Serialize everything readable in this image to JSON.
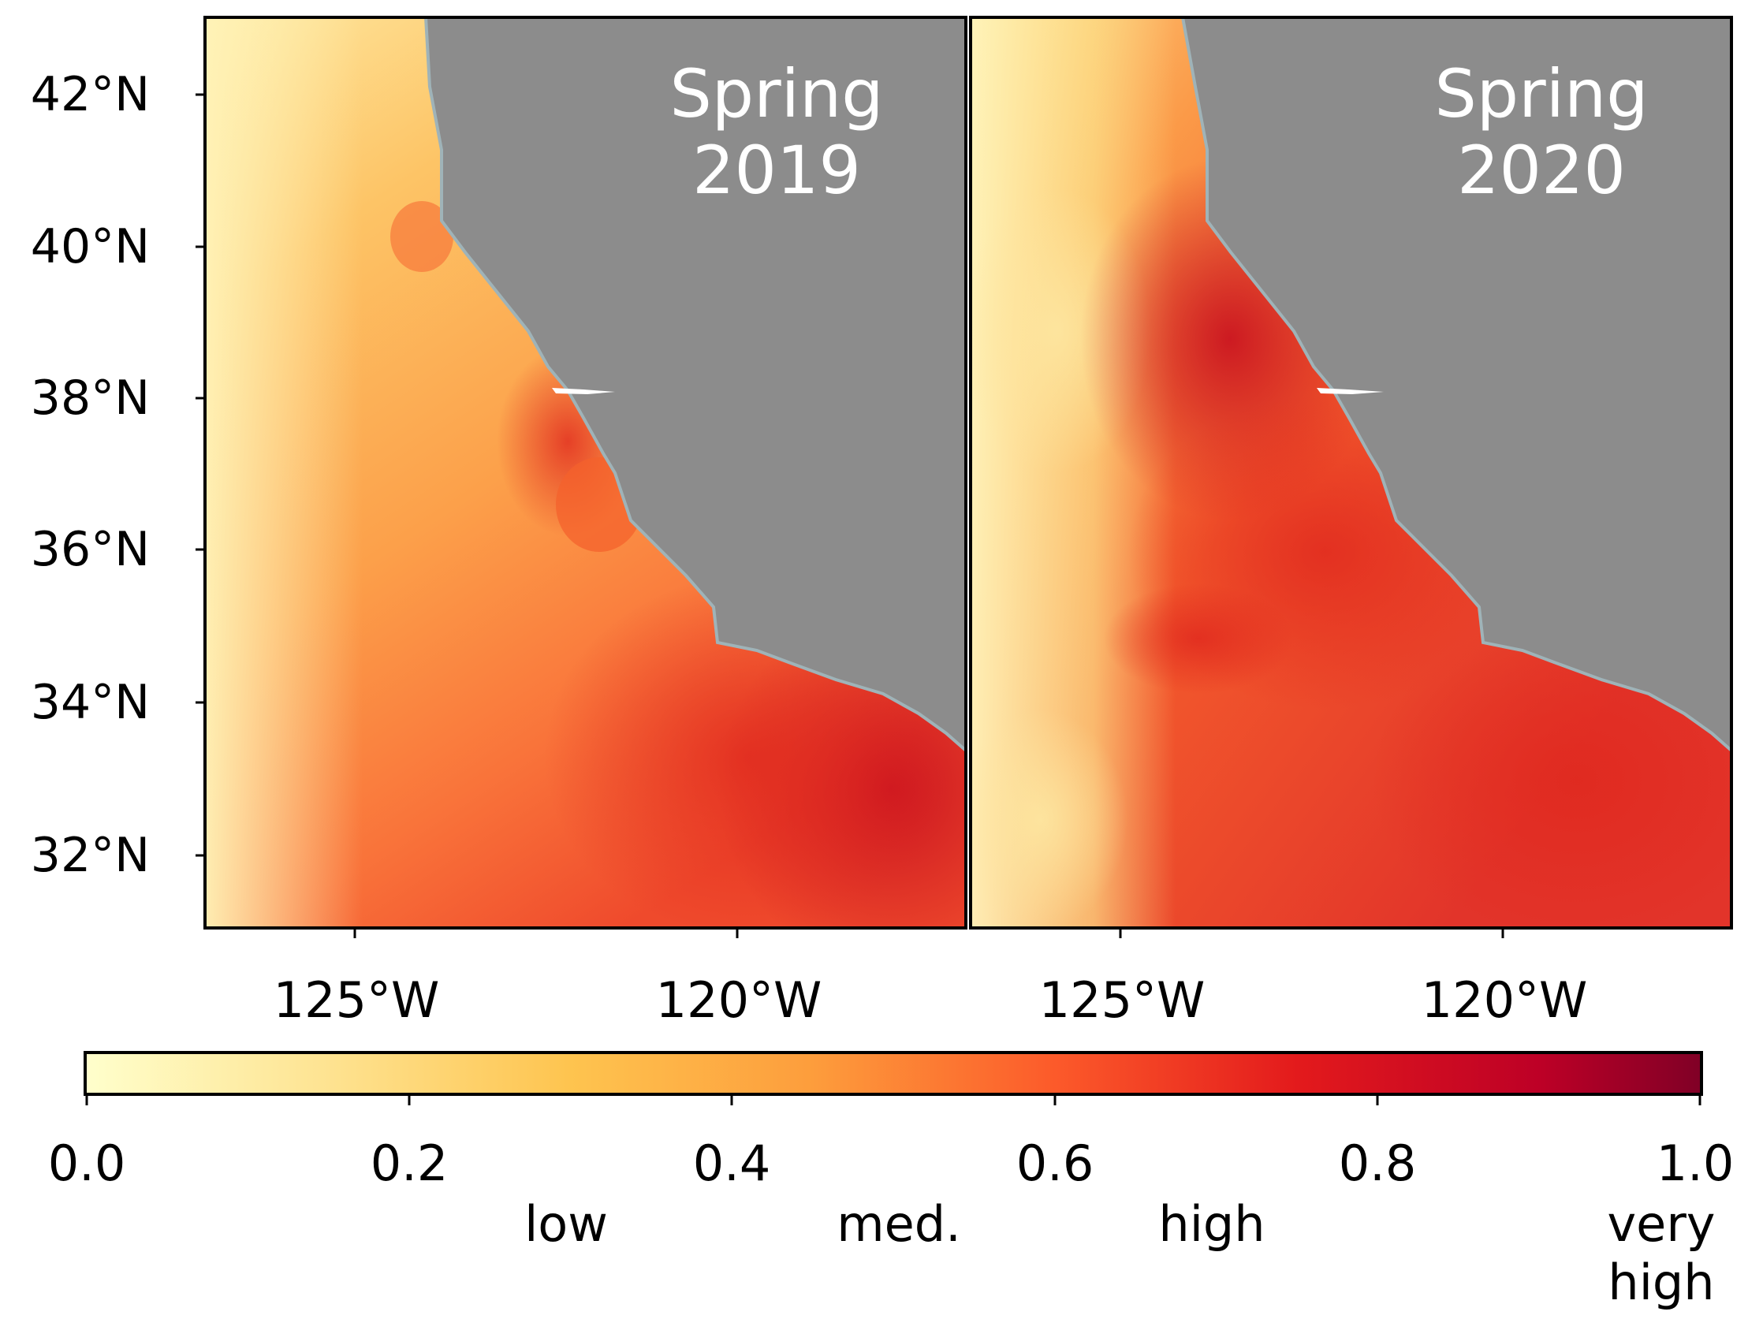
{
  "panels": [
    {
      "id": "2019",
      "title_line1": "Spring",
      "title_line2": "2019"
    },
    {
      "id": "2020",
      "title_line1": "Spring",
      "title_line2": "2020"
    }
  ],
  "latitude_ticks": [
    "42°N",
    "40°N",
    "38°N",
    "36°N",
    "34°N",
    "32°N"
  ],
  "longitude_ticks": [
    "125°W",
    "120°W"
  ],
  "colorbar": {
    "ticks": [
      "0.0",
      "0.2",
      "0.4",
      "0.6",
      "0.8",
      "1.0"
    ],
    "categories": {
      "low": "low",
      "med": "med.",
      "high": "high",
      "very1": "very",
      "very2": "high"
    },
    "colors": [
      "#ffffcc",
      "#fee391",
      "#feb24c",
      "#fd8d3c",
      "#fc4e2a",
      "#e31a1c",
      "#bd0026",
      "#800026"
    ]
  },
  "land_color": "#8c8c8c",
  "coast_color": "#9fb3b8"
}
